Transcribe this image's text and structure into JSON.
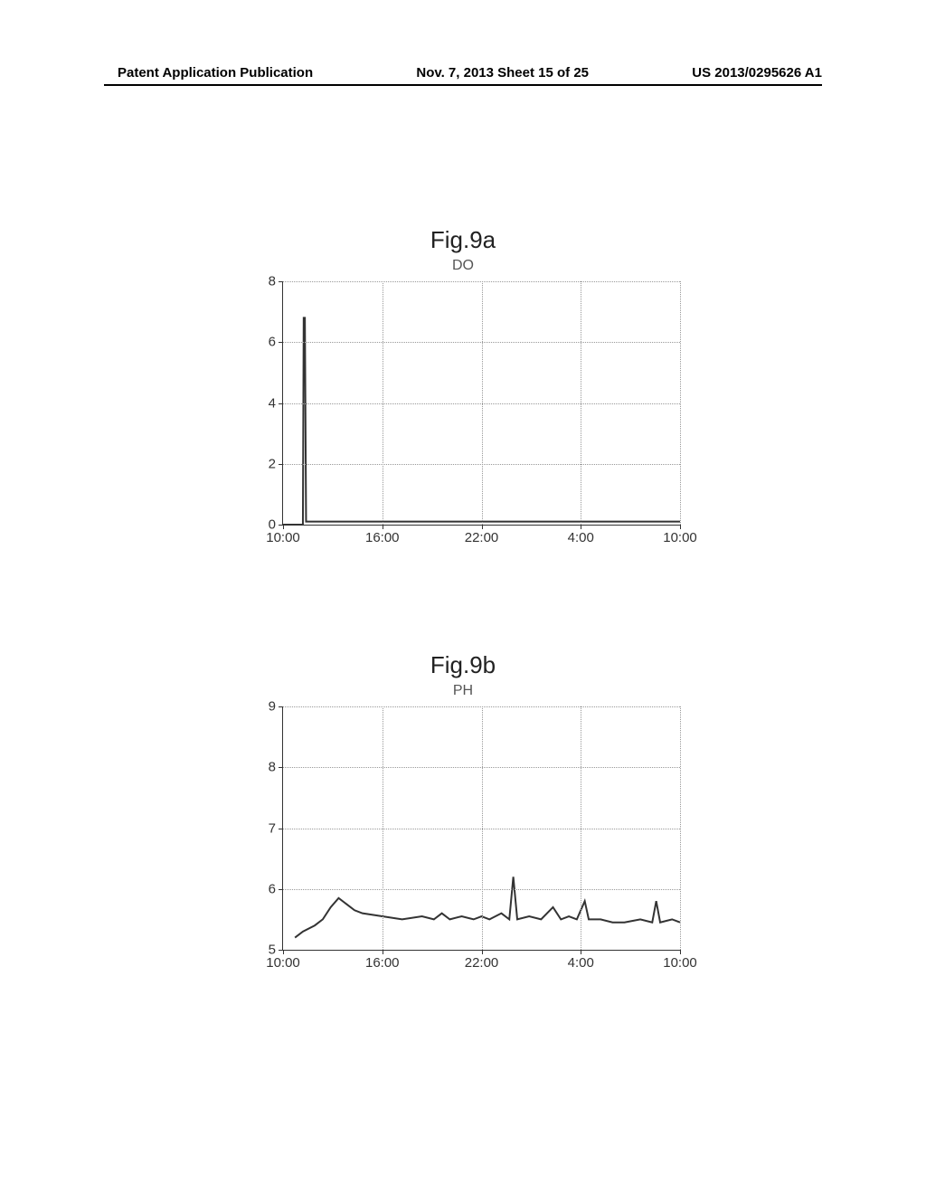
{
  "header": {
    "left": "Patent Application Publication",
    "center": "Nov. 7, 2013  Sheet 15 of 25",
    "right": "US 2013/0295626 A1"
  },
  "fig9a": {
    "title": "Fig.9a",
    "subtitle": "DO",
    "type": "line",
    "y_ticks": [
      0,
      2,
      4,
      6,
      8
    ],
    "ylim": [
      0,
      8
    ],
    "x_ticks": [
      "10:00",
      "16:00",
      "22:00",
      "4:00",
      "10:00"
    ],
    "x_positions": [
      0,
      25,
      50,
      75,
      100
    ],
    "line_color": "#333333",
    "grid_color": "#999999",
    "background_color": "#ffffff",
    "data_points": [
      [
        0,
        0
      ],
      [
        5,
        0
      ],
      [
        5.2,
        6.8
      ],
      [
        5.5,
        6.8
      ],
      [
        5.8,
        0.1
      ],
      [
        8,
        0.1
      ],
      [
        10,
        0.1
      ],
      [
        20,
        0.1
      ],
      [
        40,
        0.1
      ],
      [
        60,
        0.1
      ],
      [
        80,
        0.1
      ],
      [
        100,
        0.1
      ]
    ]
  },
  "fig9b": {
    "title": "Fig.9b",
    "subtitle": "PH",
    "type": "line",
    "y_ticks": [
      5,
      6,
      7,
      8,
      9
    ],
    "ylim": [
      5,
      9
    ],
    "x_ticks": [
      "10:00",
      "16:00",
      "22:00",
      "4:00",
      "10:00"
    ],
    "x_positions": [
      0,
      25,
      50,
      75,
      100
    ],
    "line_color": "#333333",
    "grid_color": "#999999",
    "background_color": "#ffffff",
    "data_points": [
      [
        3,
        5.2
      ],
      [
        5,
        5.3
      ],
      [
        8,
        5.4
      ],
      [
        10,
        5.5
      ],
      [
        12,
        5.7
      ],
      [
        14,
        5.85
      ],
      [
        16,
        5.75
      ],
      [
        18,
        5.65
      ],
      [
        20,
        5.6
      ],
      [
        25,
        5.55
      ],
      [
        30,
        5.5
      ],
      [
        35,
        5.55
      ],
      [
        38,
        5.5
      ],
      [
        40,
        5.6
      ],
      [
        42,
        5.5
      ],
      [
        45,
        5.55
      ],
      [
        48,
        5.5
      ],
      [
        50,
        5.55
      ],
      [
        52,
        5.5
      ],
      [
        55,
        5.6
      ],
      [
        57,
        5.5
      ],
      [
        58,
        6.2
      ],
      [
        59,
        5.5
      ],
      [
        62,
        5.55
      ],
      [
        65,
        5.5
      ],
      [
        68,
        5.7
      ],
      [
        70,
        5.5
      ],
      [
        72,
        5.55
      ],
      [
        74,
        5.5
      ],
      [
        76,
        5.8
      ],
      [
        77,
        5.5
      ],
      [
        80,
        5.5
      ],
      [
        83,
        5.45
      ],
      [
        86,
        5.45
      ],
      [
        90,
        5.5
      ],
      [
        93,
        5.45
      ],
      [
        94,
        5.8
      ],
      [
        95,
        5.45
      ],
      [
        98,
        5.5
      ],
      [
        100,
        5.45
      ]
    ]
  }
}
